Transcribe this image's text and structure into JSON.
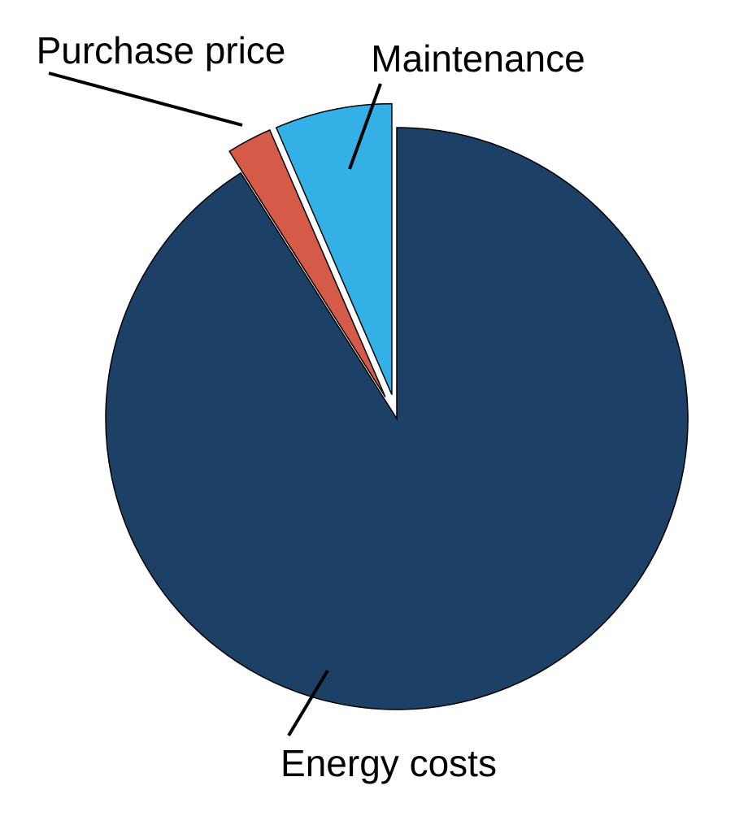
{
  "chart_data": {
    "type": "pie",
    "title": "",
    "slices": [
      {
        "label": "Energy costs",
        "value": 91,
        "color": "#1d4066",
        "exploded": false
      },
      {
        "label": "Purchase price",
        "value": 2.5,
        "color": "#d65a48",
        "exploded": true
      },
      {
        "label": "Maintenance",
        "value": 6.5,
        "color": "#33b0e6",
        "exploded": true
      }
    ],
    "start": "12 o'clock",
    "direction": "clockwise",
    "legend": "none",
    "labels": "outside-with-leader-lines"
  }
}
